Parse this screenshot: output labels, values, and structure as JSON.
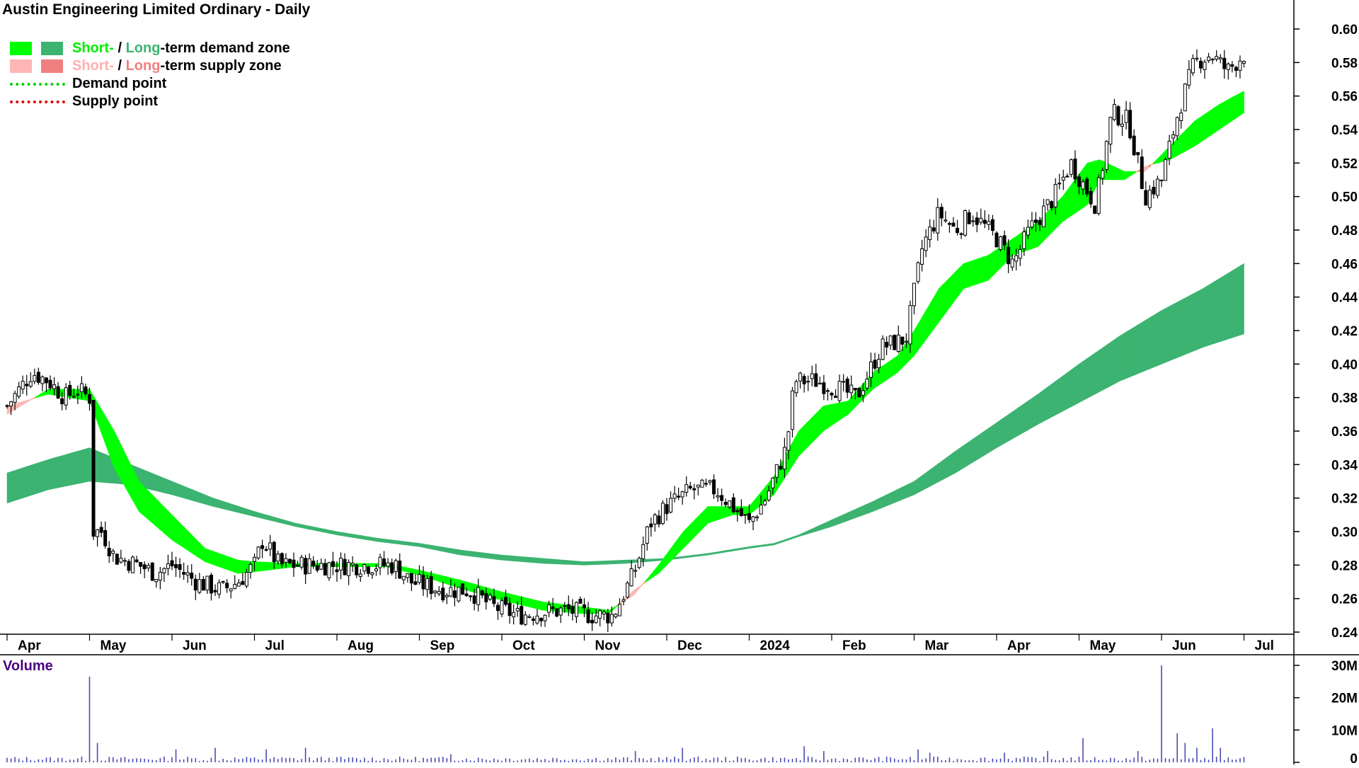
{
  "title": "Austin Engineering Limited Ordinary - Daily",
  "legend": {
    "demand_short": "Short-",
    "demand_sep": " / ",
    "demand_long": "Long",
    "demand_rest": "-term demand zone",
    "supply_short": "Short-",
    "supply_sep": " / ",
    "supply_long": "Long",
    "supply_rest": "-term supply zone",
    "demand_point": "Demand point",
    "supply_point": "Supply point"
  },
  "colors": {
    "short_demand": "#00ff00",
    "long_demand": "#3cb371",
    "short_supply": "#ffb6b6",
    "long_supply": "#f08080",
    "transition": "#ff7f2a",
    "demand_point": "#00d000",
    "supply_point": "#e00000",
    "volume_bar": "#4b4bb4"
  },
  "chart_data": [
    {
      "type": "candlestick",
      "title": "Austin Engineering Limited Ordinary - Daily",
      "x_tick_labels": [
        "Apr",
        "May",
        "Jun",
        "Jul",
        "Aug",
        "Sep",
        "Oct",
        "Nov",
        "Dec",
        "2024",
        "Feb",
        "Mar",
        "Apr",
        "May",
        "Jun",
        "Jul"
      ],
      "y_ticks": [
        "0.24",
        "0.26",
        "0.28",
        "0.30",
        "0.32",
        "0.34",
        "0.36",
        "0.38",
        "0.40",
        "0.42",
        "0.44",
        "0.46",
        "0.48",
        "0.50",
        "0.52",
        "0.54",
        "0.56",
        "0.58",
        "0.60"
      ],
      "ylim": [
        0.225,
        0.615
      ],
      "xlim_months": [
        0,
        15.05
      ],
      "price_close_path": [
        [
          0.0,
          0.375
        ],
        [
          0.3,
          0.395
        ],
        [
          0.5,
          0.39
        ],
        [
          0.7,
          0.38
        ],
        [
          0.85,
          0.385
        ],
        [
          1.0,
          0.38
        ],
        [
          1.02,
          0.3
        ],
        [
          1.15,
          0.3
        ],
        [
          1.3,
          0.285
        ],
        [
          1.6,
          0.28
        ],
        [
          1.8,
          0.275
        ],
        [
          2.0,
          0.28
        ],
        [
          2.3,
          0.27
        ],
        [
          2.6,
          0.265
        ],
        [
          2.8,
          0.27
        ],
        [
          3.0,
          0.28
        ],
        [
          3.1,
          0.295
        ],
        [
          3.3,
          0.28
        ],
        [
          3.6,
          0.28
        ],
        [
          4.0,
          0.28
        ],
        [
          4.4,
          0.28
        ],
        [
          4.7,
          0.28
        ],
        [
          4.9,
          0.27
        ],
        [
          5.3,
          0.265
        ],
        [
          5.6,
          0.265
        ],
        [
          5.9,
          0.255
        ],
        [
          6.2,
          0.25
        ],
        [
          6.5,
          0.252
        ],
        [
          6.8,
          0.253
        ],
        [
          7.1,
          0.25
        ],
        [
          7.35,
          0.25
        ],
        [
          7.6,
          0.275
        ],
        [
          7.8,
          0.305
        ],
        [
          8.0,
          0.315
        ],
        [
          8.3,
          0.325
        ],
        [
          8.6,
          0.325
        ],
        [
          8.8,
          0.315
        ],
        [
          9.0,
          0.305
        ],
        [
          9.2,
          0.32
        ],
        [
          9.45,
          0.35
        ],
        [
          9.55,
          0.39
        ],
        [
          9.8,
          0.39
        ],
        [
          10.1,
          0.385
        ],
        [
          10.3,
          0.38
        ],
        [
          10.6,
          0.41
        ],
        [
          10.9,
          0.415
        ],
        [
          11.1,
          0.47
        ],
        [
          11.3,
          0.49
        ],
        [
          11.5,
          0.48
        ],
        [
          11.7,
          0.49
        ],
        [
          12.0,
          0.475
        ],
        [
          12.2,
          0.46
        ],
        [
          12.4,
          0.48
        ],
        [
          12.7,
          0.5
        ],
        [
          12.9,
          0.52
        ],
        [
          13.2,
          0.495
        ],
        [
          13.4,
          0.55
        ],
        [
          13.6,
          0.545
        ],
        [
          13.8,
          0.5
        ],
        [
          14.0,
          0.51
        ],
        [
          14.2,
          0.55
        ],
        [
          14.4,
          0.58
        ],
        [
          14.6,
          0.585
        ],
        [
          14.8,
          0.575
        ],
        [
          15.0,
          0.585
        ]
      ],
      "short_term_zone": [
        [
          0.0,
          0.37,
          0.375
        ],
        [
          0.5,
          0.385,
          0.382
        ],
        [
          1.0,
          0.385,
          0.378
        ],
        [
          1.3,
          0.36,
          0.338
        ],
        [
          1.6,
          0.33,
          0.312
        ],
        [
          2.0,
          0.31,
          0.295
        ],
        [
          2.4,
          0.29,
          0.282
        ],
        [
          2.8,
          0.283,
          0.275
        ],
        [
          3.0,
          0.282,
          0.276
        ],
        [
          3.5,
          0.281,
          0.279
        ],
        [
          4.0,
          0.281,
          0.279
        ],
        [
          4.6,
          0.281,
          0.279
        ],
        [
          5.0,
          0.277,
          0.274
        ],
        [
          5.5,
          0.271,
          0.266
        ],
        [
          6.0,
          0.264,
          0.259
        ],
        [
          6.5,
          0.258,
          0.253
        ],
        [
          7.0,
          0.255,
          0.251
        ],
        [
          7.3,
          0.253,
          0.251
        ],
        [
          7.6,
          0.262,
          0.265
        ],
        [
          7.9,
          0.28,
          0.275
        ],
        [
          8.2,
          0.3,
          0.29
        ],
        [
          8.5,
          0.315,
          0.305
        ],
        [
          8.8,
          0.315,
          0.31
        ],
        [
          9.0,
          0.315,
          0.31
        ],
        [
          9.3,
          0.333,
          0.322
        ],
        [
          9.6,
          0.36,
          0.345
        ],
        [
          9.9,
          0.375,
          0.36
        ],
        [
          10.2,
          0.378,
          0.37
        ],
        [
          10.5,
          0.395,
          0.385
        ],
        [
          10.8,
          0.405,
          0.395
        ],
        [
          11.0,
          0.42,
          0.405
        ],
        [
          11.3,
          0.445,
          0.425
        ],
        [
          11.6,
          0.46,
          0.445
        ],
        [
          11.9,
          0.465,
          0.45
        ],
        [
          12.2,
          0.475,
          0.465
        ],
        [
          12.5,
          0.485,
          0.47
        ],
        [
          12.8,
          0.5,
          0.485
        ],
        [
          13.1,
          0.52,
          0.495
        ],
        [
          13.25,
          0.522,
          0.51
        ],
        [
          13.55,
          0.515,
          0.51
        ],
        [
          13.8,
          0.515,
          0.518
        ],
        [
          14.1,
          0.53,
          0.522
        ],
        [
          14.4,
          0.545,
          0.53
        ],
        [
          14.7,
          0.555,
          0.54
        ],
        [
          15.0,
          0.563,
          0.55
        ]
      ],
      "long_term_zone": [
        [
          0.0,
          0.335,
          0.317
        ],
        [
          0.5,
          0.343,
          0.325
        ],
        [
          1.0,
          0.35,
          0.33
        ],
        [
          1.5,
          0.34,
          0.328
        ],
        [
          2.0,
          0.33,
          0.322
        ],
        [
          2.5,
          0.32,
          0.315
        ],
        [
          3.0,
          0.312,
          0.309
        ],
        [
          3.5,
          0.305,
          0.303
        ],
        [
          4.0,
          0.3,
          0.298
        ],
        [
          4.5,
          0.296,
          0.294
        ],
        [
          5.0,
          0.293,
          0.291
        ],
        [
          5.5,
          0.289,
          0.286
        ],
        [
          6.0,
          0.286,
          0.283
        ],
        [
          6.5,
          0.284,
          0.281
        ],
        [
          7.0,
          0.282,
          0.28
        ],
        [
          7.5,
          0.283,
          0.281
        ],
        [
          8.0,
          0.284,
          0.283
        ],
        [
          8.5,
          0.287,
          0.286
        ],
        [
          9.0,
          0.291,
          0.29
        ],
        [
          9.3,
          0.293,
          0.292
        ],
        [
          9.6,
          0.298,
          0.297
        ],
        [
          10.0,
          0.307,
          0.303
        ],
        [
          10.5,
          0.318,
          0.312
        ],
        [
          11.0,
          0.33,
          0.322
        ],
        [
          11.5,
          0.348,
          0.335
        ],
        [
          12.0,
          0.365,
          0.35
        ],
        [
          12.5,
          0.382,
          0.364
        ],
        [
          13.0,
          0.4,
          0.377
        ],
        [
          13.5,
          0.417,
          0.39
        ],
        [
          14.0,
          0.432,
          0.4
        ],
        [
          14.5,
          0.445,
          0.41
        ],
        [
          15.0,
          0.46,
          0.418
        ]
      ]
    },
    {
      "type": "bar",
      "title": "Volume",
      "y_ticks": [
        "0",
        "10M",
        "20M",
        "30M"
      ],
      "ylim": [
        0,
        31
      ],
      "unit": "M",
      "spikes": [
        [
          1.0,
          26.5
        ],
        [
          1.08,
          6
        ],
        [
          2.05,
          4
        ],
        [
          2.5,
          4.5
        ],
        [
          3.15,
          4
        ],
        [
          3.6,
          4.5
        ],
        [
          5.4,
          2.5
        ],
        [
          7.6,
          3.5
        ],
        [
          8.2,
          4.5
        ],
        [
          9.65,
          5
        ],
        [
          9.9,
          3.5
        ],
        [
          11.05,
          4
        ],
        [
          11.2,
          3
        ],
        [
          12.1,
          3
        ],
        [
          12.6,
          3.5
        ],
        [
          13.05,
          7.5
        ],
        [
          13.7,
          3.5
        ],
        [
          14.0,
          30
        ],
        [
          14.2,
          9
        ],
        [
          14.3,
          6
        ],
        [
          14.45,
          4.5
        ],
        [
          14.6,
          10.5
        ],
        [
          14.7,
          4.5
        ]
      ],
      "baseline": 1.2
    }
  ],
  "volume_label": "Volume"
}
